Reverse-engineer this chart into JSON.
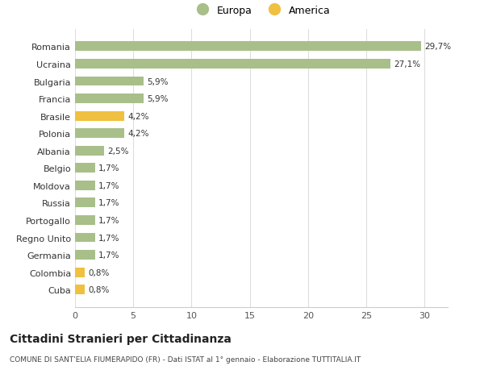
{
  "categories": [
    "Cuba",
    "Colombia",
    "Germania",
    "Regno Unito",
    "Portogallo",
    "Russia",
    "Moldova",
    "Belgio",
    "Albania",
    "Polonia",
    "Brasile",
    "Francia",
    "Bulgaria",
    "Ucraina",
    "Romania"
  ],
  "values": [
    0.8,
    0.8,
    1.7,
    1.7,
    1.7,
    1.7,
    1.7,
    1.7,
    2.5,
    4.2,
    4.2,
    5.9,
    5.9,
    27.1,
    29.7
  ],
  "labels": [
    "0,8%",
    "0,8%",
    "1,7%",
    "1,7%",
    "1,7%",
    "1,7%",
    "1,7%",
    "1,7%",
    "2,5%",
    "4,2%",
    "4,2%",
    "5,9%",
    "5,9%",
    "27,1%",
    "29,7%"
  ],
  "colors": [
    "#f0c040",
    "#f0c040",
    "#a8bf8a",
    "#a8bf8a",
    "#a8bf8a",
    "#a8bf8a",
    "#a8bf8a",
    "#a8bf8a",
    "#a8bf8a",
    "#a8bf8a",
    "#f0c040",
    "#a8bf8a",
    "#a8bf8a",
    "#a8bf8a",
    "#a8bf8a"
  ],
  "europa_color": "#a8bf8a",
  "america_color": "#f0c040",
  "title": "Cittadini Stranieri per Cittadinanza",
  "subtitle": "COMUNE DI SANT'ELIA FIUMERAPIDO (FR) - Dati ISTAT al 1° gennaio - Elaborazione TUTTITALIA.IT",
  "xlim": [
    0,
    32
  ],
  "xticks": [
    0,
    5,
    10,
    15,
    20,
    25,
    30
  ],
  "background_color": "#ffffff",
  "grid_color": "#dddddd",
  "legend_europa": "Europa",
  "legend_america": "America"
}
